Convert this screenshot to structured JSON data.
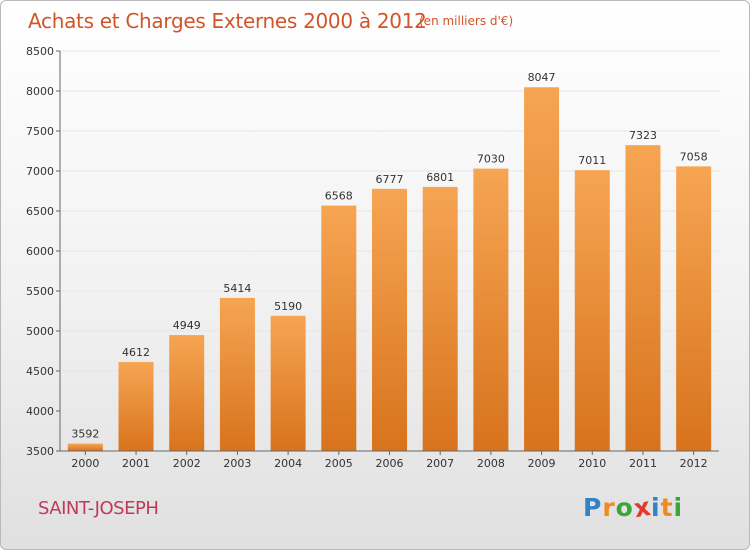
{
  "header": {
    "title": "Achats et Charges Externes 2000 à 2012",
    "unit": "(en milliers d'€)"
  },
  "footer": {
    "commune": "SAINT-JOSEPH",
    "logo_letters": [
      {
        "ch": "P",
        "color": "#2f83c6"
      },
      {
        "ch": "r",
        "color": "#f28b1f"
      },
      {
        "ch": "o",
        "color": "#3aa636"
      },
      {
        "ch": "x",
        "color": "#e23a2e"
      },
      {
        "ch": "i",
        "color": "#2f83c6"
      },
      {
        "ch": "t",
        "color": "#f28b1f"
      },
      {
        "ch": "i",
        "color": "#3aa636"
      }
    ]
  },
  "colors": {
    "bar_top": "#f6a553",
    "bar_bottom": "#d8731c",
    "grid": "#e6e6e6",
    "axis": "#666666"
  },
  "chart_data": {
    "type": "bar",
    "categories": [
      "2000",
      "2001",
      "2002",
      "2003",
      "2004",
      "2005",
      "2006",
      "2007",
      "2008",
      "2009",
      "2010",
      "2011",
      "2012"
    ],
    "values": [
      3592,
      4612,
      4949,
      5414,
      5190,
      6568,
      6777,
      6801,
      7030,
      8047,
      7011,
      7323,
      7058
    ],
    "ylim": [
      3500,
      8500
    ],
    "yticks": [
      3500,
      4000,
      4500,
      5000,
      5500,
      6000,
      6500,
      7000,
      7500,
      8000,
      8500
    ],
    "grid": true,
    "data_labels": true
  }
}
